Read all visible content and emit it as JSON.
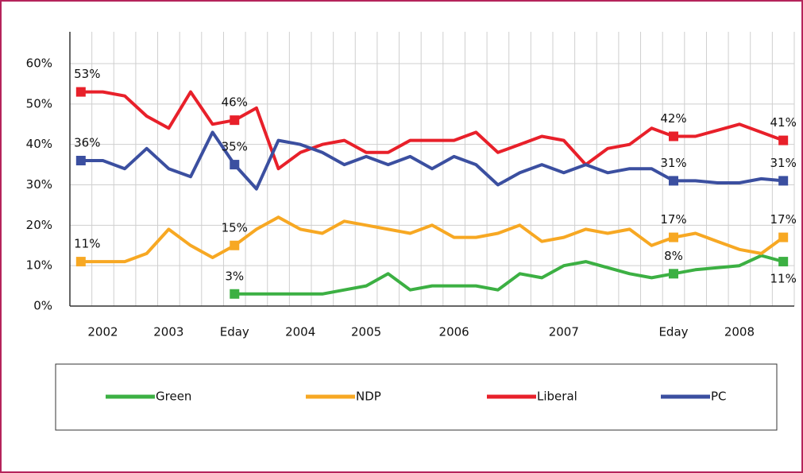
{
  "chart_data": {
    "type": "line",
    "categories": [
      null,
      "2002",
      null,
      null,
      "2003",
      null,
      null,
      "Eday",
      null,
      null,
      "2004",
      null,
      null,
      "2005",
      null,
      null,
      null,
      "2006",
      null,
      null,
      null,
      null,
      "2007",
      null,
      null,
      null,
      null,
      "Eday",
      null,
      null,
      "2008",
      null,
      null
    ],
    "ylim": [
      0,
      60
    ],
    "yticks": [
      {
        "value": 0,
        "label": "0%"
      },
      {
        "value": 10,
        "label": "10%"
      },
      {
        "value": 20,
        "label": "20%"
      },
      {
        "value": 30,
        "label": "30%"
      },
      {
        "value": 40,
        "label": "40%"
      },
      {
        "value": 50,
        "label": "50%"
      },
      {
        "value": 60,
        "label": "60%"
      }
    ],
    "grid": true,
    "legend": "bottom",
    "series": [
      {
        "name": "Green",
        "color": "#3cb043",
        "values": [
          null,
          null,
          null,
          null,
          null,
          null,
          null,
          3,
          3,
          3,
          3,
          3,
          4,
          5,
          8,
          4,
          5,
          5,
          5,
          4,
          8,
          7,
          10,
          11,
          9.5,
          8,
          7,
          8,
          9,
          9.5,
          10,
          12.5,
          11
        ],
        "value_labels": [
          null,
          null,
          null,
          null,
          null,
          null,
          null,
          "3%",
          null,
          null,
          null,
          null,
          null,
          null,
          null,
          null,
          null,
          null,
          null,
          null,
          null,
          null,
          null,
          null,
          null,
          null,
          null,
          "8%",
          null,
          null,
          null,
          null,
          "11%"
        ]
      },
      {
        "name": "NDP",
        "color": "#f7a823",
        "values": [
          11,
          11,
          11,
          13,
          19,
          15,
          12,
          15,
          19,
          22,
          19,
          18,
          21,
          20,
          19,
          18,
          20,
          17,
          17,
          18,
          20,
          16,
          17,
          19,
          18,
          19,
          15,
          17,
          18,
          16,
          14,
          13,
          17
        ],
        "value_labels": [
          "11%",
          null,
          null,
          null,
          null,
          null,
          null,
          "15%",
          null,
          null,
          null,
          null,
          null,
          null,
          null,
          null,
          null,
          null,
          null,
          null,
          null,
          null,
          null,
          null,
          null,
          null,
          null,
          "17%",
          null,
          null,
          null,
          null,
          "17%"
        ]
      },
      {
        "name": "Liberal",
        "color": "#e8202a",
        "values": [
          53,
          53,
          52,
          47,
          44,
          53,
          45,
          46,
          49,
          34,
          38,
          40,
          41,
          38,
          38,
          41,
          41,
          41,
          43,
          38,
          40,
          42,
          41,
          35,
          39,
          40,
          44,
          42,
          42,
          43.5,
          45,
          43,
          41
        ],
        "value_labels": [
          "53%",
          null,
          null,
          null,
          null,
          null,
          null,
          "46%",
          null,
          null,
          null,
          null,
          null,
          null,
          null,
          null,
          null,
          null,
          null,
          null,
          null,
          null,
          null,
          null,
          null,
          null,
          null,
          "42%",
          null,
          null,
          null,
          null,
          "41%"
        ]
      },
      {
        "name": "PC",
        "color": "#3b4fa0",
        "values": [
          36,
          36,
          34,
          39,
          34,
          32,
          43,
          35,
          29,
          41,
          40,
          38,
          35,
          37,
          35,
          37,
          34,
          37,
          35,
          30,
          33,
          35,
          33,
          35,
          33,
          34,
          34,
          31,
          31,
          30.5,
          30.5,
          31.5,
          31
        ],
        "value_labels": [
          "36%",
          null,
          null,
          null,
          null,
          null,
          null,
          "35%",
          null,
          null,
          null,
          null,
          null,
          null,
          null,
          null,
          null,
          null,
          null,
          null,
          null,
          null,
          null,
          null,
          null,
          null,
          null,
          "31%",
          null,
          null,
          null,
          null,
          "31%"
        ]
      }
    ]
  }
}
